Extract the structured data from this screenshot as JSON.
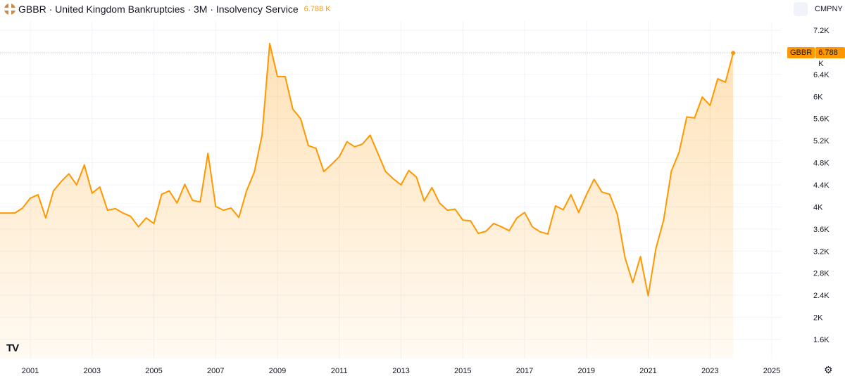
{
  "header": {
    "symbol": "GBBR",
    "title": "GBBR · United Kingdom Bankruptcies · 3M · Insolvency Service",
    "value": "6.788 K"
  },
  "toolbar": {
    "compare_label": "CMPNY"
  },
  "price_badge": {
    "symbol": "GBBR",
    "value": "6.788 K"
  },
  "colors": {
    "line": "#ff9800",
    "grid": "#f0f3fa",
    "text": "#131722"
  },
  "chart_data": {
    "type": "area",
    "title": "United Kingdom Bankruptcies",
    "frequency": "3M",
    "source": "Insolvency Service",
    "xlabel": "",
    "ylabel": "",
    "y_unit": "K",
    "ylim": [
      1.4,
      7.4
    ],
    "xlim": [
      2000,
      2026.3
    ],
    "x_ticks": [
      "2001",
      "2003",
      "2005",
      "2007",
      "2009",
      "2011",
      "2013",
      "2015",
      "2017",
      "2019",
      "2021",
      "2023",
      "2025"
    ],
    "y_ticks": [
      "7.2K",
      "6.4K",
      "6K",
      "5.6K",
      "5.2K",
      "4.8K",
      "4.4K",
      "4K",
      "3.6K",
      "3.2K",
      "2.8K",
      "2.4K",
      "2K",
      "1.6K"
    ],
    "x_start": 2000,
    "x_step": 0.25,
    "values": [
      3.89,
      3.89,
      3.89,
      3.98,
      4.16,
      4.22,
      3.8,
      4.29,
      4.46,
      4.6,
      4.4,
      4.76,
      4.25,
      4.36,
      3.94,
      3.97,
      3.89,
      3.83,
      3.64,
      3.8,
      3.7,
      4.23,
      4.29,
      4.07,
      4.41,
      4.12,
      4.09,
      4.97,
      4.01,
      3.94,
      3.98,
      3.81,
      4.29,
      4.63,
      5.3,
      6.96,
      6.36,
      6.36,
      5.77,
      5.6,
      5.11,
      5.06,
      4.64,
      4.77,
      4.91,
      5.18,
      5.09,
      5.14,
      5.3,
      4.97,
      4.64,
      4.51,
      4.4,
      4.66,
      4.54,
      4.11,
      4.35,
      4.07,
      3.94,
      3.96,
      3.76,
      3.75,
      3.52,
      3.56,
      3.7,
      3.64,
      3.57,
      3.8,
      3.9,
      3.64,
      3.55,
      3.51,
      4.02,
      3.95,
      4.22,
      3.9,
      4.22,
      4.5,
      4.27,
      4.23,
      3.87,
      3.08,
      2.63,
      3.1,
      2.39,
      3.25,
      3.76,
      4.65,
      4.99,
      5.63,
      5.61,
      5.99,
      5.84,
      6.32,
      6.26,
      6.788
    ],
    "last_value": 6.788
  }
}
